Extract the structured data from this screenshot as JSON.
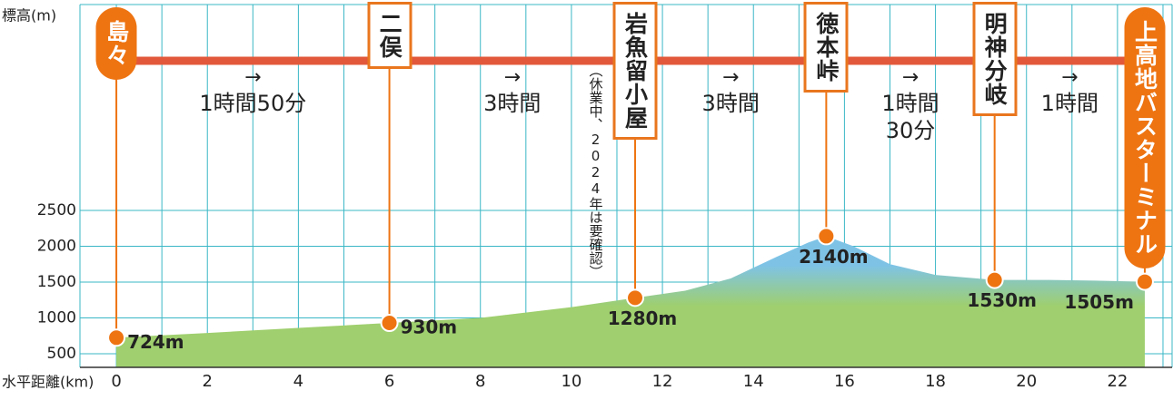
{
  "chart_data": {
    "type": "area",
    "y_label": "標高(m)",
    "x_label": "水平距離(km)",
    "xlim": [
      -0.8,
      23.2
    ],
    "ylim": [
      310,
      5373
    ],
    "xticks": [
      0,
      2,
      4,
      6,
      8,
      10,
      12,
      14,
      16,
      18,
      20,
      22
    ],
    "yticks": [
      500,
      1000,
      1500,
      2000,
      2500
    ],
    "grid": true,
    "grid_color": "#3ab7c6",
    "route_color": "#e2583a",
    "marker_color": "#ee7412",
    "fill_colors": [
      "#9fcf6e",
      "#7ec3e6"
    ],
    "x": [
      0,
      2,
      4,
      6,
      8,
      10,
      11.4,
      12.5,
      13.5,
      14.5,
      15.2,
      15.6,
      16.2,
      17,
      18,
      19.3,
      20.5,
      21.5,
      22.6
    ],
    "values": [
      724,
      790,
      860,
      930,
      1000,
      1150,
      1280,
      1380,
      1550,
      1850,
      2050,
      2140,
      2000,
      1750,
      1600,
      1530,
      1530,
      1520,
      1505
    ],
    "waypoints": [
      {
        "name": "島々",
        "x": 0,
        "elevation": 724,
        "label": "724m",
        "style": "pill"
      },
      {
        "name": "二俣",
        "x": 6,
        "elevation": 930,
        "label": "930m",
        "style": "box"
      },
      {
        "name": "岩魚留小屋",
        "x": 11.4,
        "elevation": 1280,
        "label": "1280m",
        "style": "box",
        "note": "（休業中、2024年は要確認）"
      },
      {
        "name": "徳本峠",
        "x": 15.6,
        "elevation": 2140,
        "label": "2140m",
        "style": "box"
      },
      {
        "name": "明神分岐",
        "x": 19.3,
        "elevation": 1530,
        "label": "1530m",
        "style": "box"
      },
      {
        "name": "上高地バスターミナル",
        "x": 22.6,
        "elevation": 1505,
        "label": "1505m",
        "style": "pill"
      }
    ],
    "segments": [
      {
        "arrow": "→",
        "lines": [
          "1時間50分"
        ]
      },
      {
        "arrow": "→",
        "lines": [
          "3時間"
        ]
      },
      {
        "arrow": "→",
        "lines": [
          "3時間"
        ]
      },
      {
        "arrow": "→",
        "lines": [
          "1時間",
          "30分"
        ]
      },
      {
        "arrow": "→",
        "lines": [
          "1時間"
        ]
      }
    ]
  }
}
